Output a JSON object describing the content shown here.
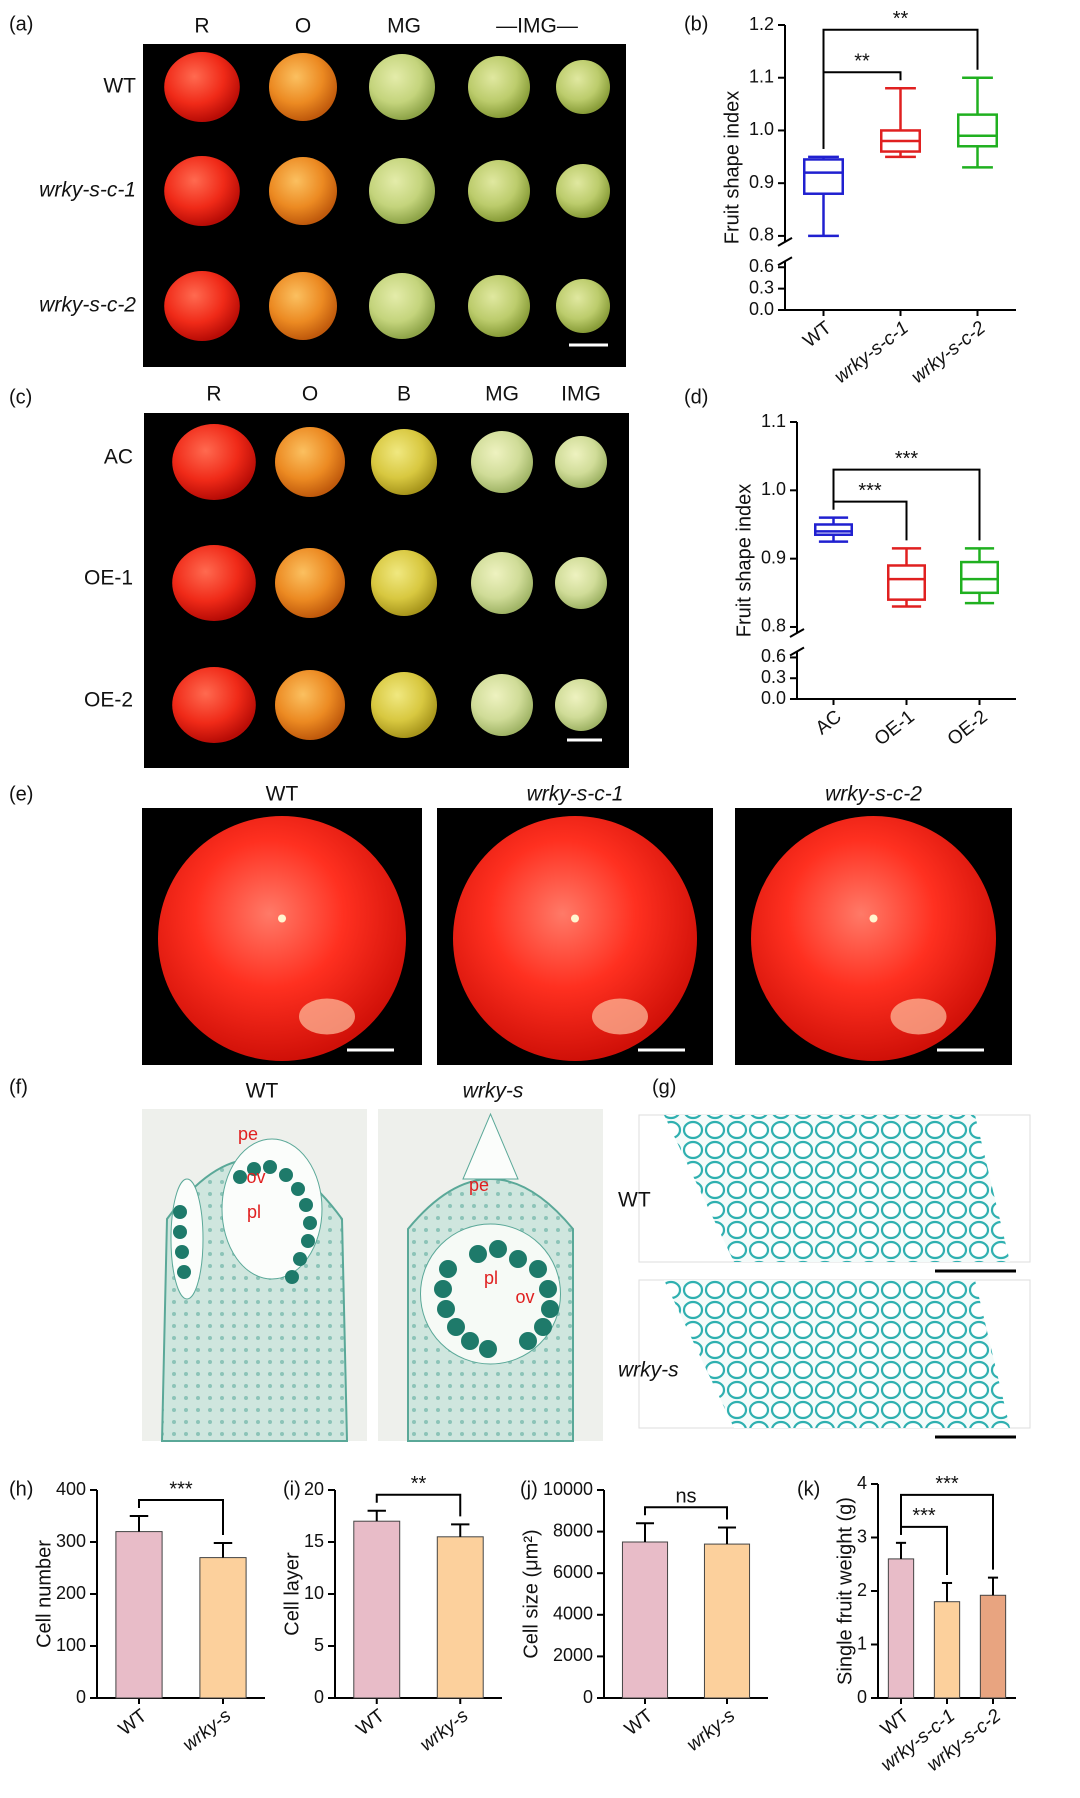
{
  "panel_labels": [
    "(a)",
    "(b)",
    "(c)",
    "(d)",
    "(e)",
    "(f)",
    "(g)",
    "(h)",
    "(i)",
    "(j)",
    "(k)"
  ],
  "photos": {
    "a": {
      "columns": [
        "R",
        "O",
        "MG",
        "—IMG—"
      ],
      "rows": [
        "WT",
        "wrky-s-c-1",
        "wrky-s-c-2"
      ]
    },
    "c": {
      "columns": [
        "R",
        "O",
        "B",
        "MG",
        "IMG"
      ],
      "rows": [
        "AC",
        "OE-1",
        "OE-2"
      ]
    },
    "e": {
      "columns": [
        "WT",
        "wrky-s-c-1",
        "wrky-s-c-2"
      ]
    },
    "f": {
      "columns": [
        "WT",
        "wrky-s"
      ],
      "tissue_labels": [
        [
          "pe",
          "ov",
          "pl"
        ],
        [
          "pe",
          "pl",
          "ov"
        ]
      ]
    },
    "g": {
      "rows": [
        "WT",
        "wrky-s"
      ]
    }
  },
  "chart_data": [
    {
      "type": "box",
      "ylabel": "Fruit shape index",
      "categories": [
        "WT",
        "wrky-s-c-1",
        "wrky-s-c-2"
      ],
      "boxes": [
        {
          "min": 0.8,
          "q1": 0.88,
          "median": 0.92,
          "q3": 0.945,
          "max": 0.95,
          "color": "#2020d0"
        },
        {
          "min": 0.95,
          "q1": 0.96,
          "median": 0.98,
          "q3": 1.0,
          "max": 1.08,
          "color": "#e02020"
        },
        {
          "min": 0.93,
          "q1": 0.97,
          "median": 0.99,
          "q3": 1.03,
          "max": 1.1,
          "color": "#20b020"
        }
      ],
      "ylim": [
        0,
        1.2
      ],
      "axis_break": [
        0.6,
        0.8
      ],
      "yticks": [
        {
          "value": 0,
          "label": "0.0"
        },
        0.3,
        0.6,
        0.8,
        0.9,
        {
          "value": 1,
          "label": "1.0"
        },
        1.1,
        1.2
      ],
      "annotations": [
        {
          "text": "**",
          "between": [
            "WT",
            "wrky-s-c-1"
          ]
        },
        {
          "text": "**",
          "between": [
            "WT",
            "wrky-s-c-2"
          ]
        }
      ]
    },
    {
      "type": "box",
      "ylabel": "Fruit shape index",
      "categories": [
        "AC",
        "OE-1",
        "OE-2"
      ],
      "boxes": [
        {
          "min": 0.925,
          "q1": 0.935,
          "median": 0.94,
          "q3": 0.95,
          "max": 0.96,
          "color": "#2020d0"
        },
        {
          "min": 0.83,
          "q1": 0.84,
          "median": 0.87,
          "q3": 0.89,
          "max": 0.915,
          "color": "#e02020"
        },
        {
          "min": 0.835,
          "q1": 0.85,
          "median": 0.87,
          "q3": 0.895,
          "max": 0.915,
          "color": "#20b020"
        }
      ],
      "ylim": [
        0,
        1.1
      ],
      "axis_break": [
        0.6,
        0.8
      ],
      "yticks": [
        {
          "value": 0,
          "label": "0.0"
        },
        0.3,
        0.6,
        0.8,
        0.9,
        {
          "value": 1,
          "label": "1.0"
        },
        1.1
      ],
      "annotations": [
        {
          "text": "***",
          "between": [
            "AC",
            "OE-1"
          ]
        },
        {
          "text": "***",
          "between": [
            "AC",
            "OE-2"
          ]
        }
      ]
    },
    {
      "type": "bar",
      "ylabel": "Cell number",
      "categories": [
        "WT",
        "wrky-s"
      ],
      "values": [
        320,
        270
      ],
      "errors": [
        30,
        28
      ],
      "colors": [
        "#e8bcc8",
        "#fcd09c"
      ],
      "ylim": [
        0,
        400
      ],
      "yticks": [
        0,
        100,
        200,
        300,
        400
      ],
      "annotations": [
        {
          "text": "***",
          "between": [
            "WT",
            "wrky-s"
          ]
        }
      ]
    },
    {
      "type": "bar",
      "ylabel": "Cell layer",
      "categories": [
        "WT",
        "wrky-s"
      ],
      "values": [
        17,
        15.5
      ],
      "errors": [
        1,
        1.2
      ],
      "colors": [
        "#e8bcc8",
        "#fcd09c"
      ],
      "ylim": [
        0,
        20
      ],
      "yticks": [
        0,
        5,
        10,
        15,
        20
      ],
      "annotations": [
        {
          "text": "**",
          "between": [
            "WT",
            "wrky-s"
          ]
        }
      ]
    },
    {
      "type": "bar",
      "ylabel": "Cell size (μm²)",
      "categories": [
        "WT",
        "wrky-s"
      ],
      "values": [
        7500,
        7400
      ],
      "errors": [
        900,
        800
      ],
      "colors": [
        "#e8bcc8",
        "#fcd09c"
      ],
      "ylim": [
        0,
        10000
      ],
      "yticks": [
        0,
        2000,
        4000,
        6000,
        8000,
        10000
      ],
      "annotations": [
        {
          "text": "ns",
          "between": [
            "WT",
            "wrky-s"
          ]
        }
      ]
    },
    {
      "type": "bar",
      "ylabel": "Single fruit weight (g)",
      "categories": [
        "WT",
        "wrky-s-c-1",
        "wrky-s-c-2"
      ],
      "values": [
        2.6,
        1.8,
        1.92
      ],
      "errors": [
        0.3,
        0.35,
        0.33
      ],
      "colors": [
        "#e8bcc8",
        "#fcd09c",
        "#e8a480"
      ],
      "ylim": [
        0,
        4
      ],
      "yticks": [
        0,
        1,
        2,
        3,
        4
      ],
      "annotations": [
        {
          "text": "***",
          "between": [
            "WT",
            "wrky-s-c-1"
          ]
        },
        {
          "text": "***",
          "between": [
            "WT",
            "wrky-s-c-2"
          ]
        }
      ]
    }
  ]
}
